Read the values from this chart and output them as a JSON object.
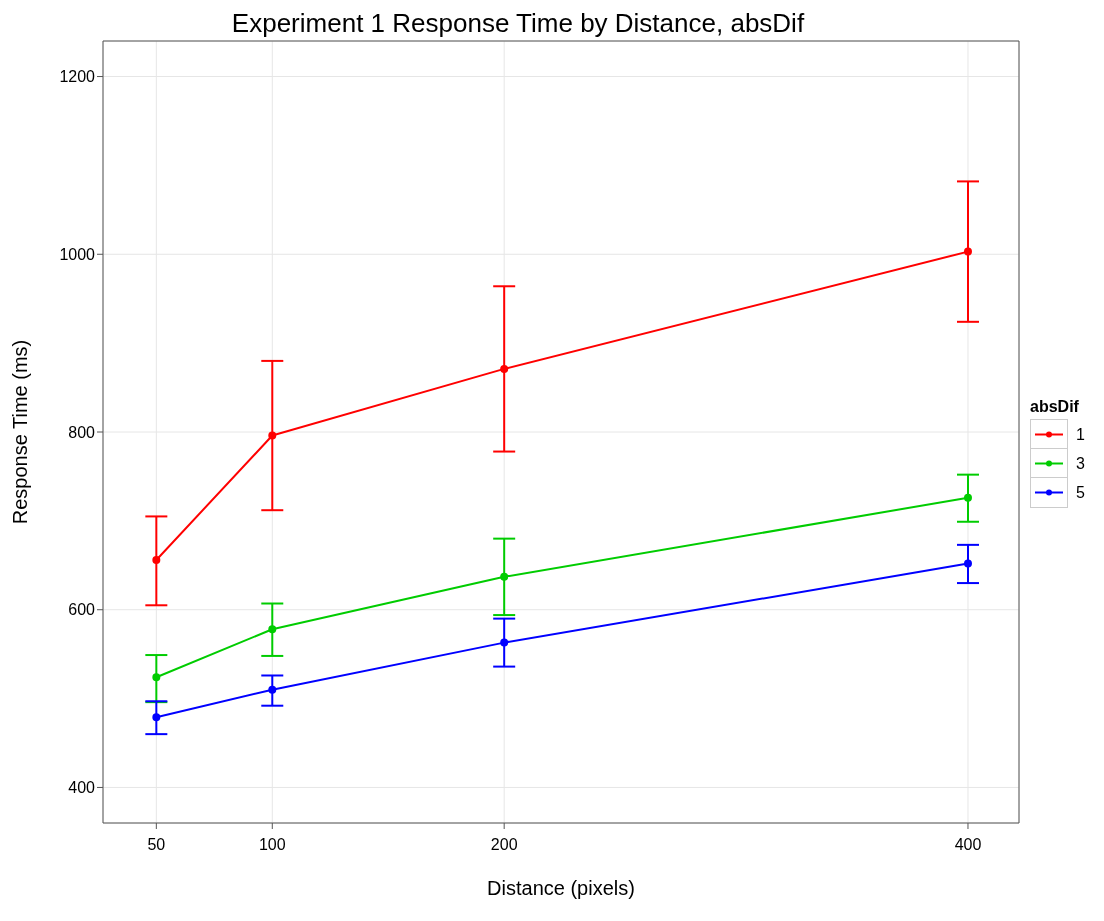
{
  "chart_data": {
    "type": "line",
    "title": "Experiment 1 Response Time by Distance, absDif",
    "xlabel": "Distance (pixels)",
    "ylabel": "Response Time (ms)",
    "legend_title": "absDif",
    "x": [
      50,
      100,
      200,
      400
    ],
    "series": [
      {
        "name": "1",
        "color": "#ff0000",
        "values": [
          656,
          796,
          871,
          1003
        ],
        "errors": [
          [
            605,
            705
          ],
          [
            712,
            880
          ],
          [
            778,
            964
          ],
          [
            924,
            1082
          ]
        ]
      },
      {
        "name": "3",
        "color": "#00cc00",
        "values": [
          524,
          578,
          637,
          726
        ],
        "errors": [
          [
            496,
            549
          ],
          [
            548,
            607
          ],
          [
            594,
            680
          ],
          [
            699,
            752
          ]
        ]
      },
      {
        "name": "5",
        "color": "#0000ff",
        "values": [
          479,
          510,
          563,
          652
        ],
        "errors": [
          [
            460,
            497
          ],
          [
            492,
            526
          ],
          [
            536,
            590
          ],
          [
            630,
            673
          ]
        ]
      }
    ],
    "xlim": [
      27,
      422
    ],
    "xticks": [
      50,
      100,
      200,
      400
    ],
    "ylim": [
      360,
      1240
    ],
    "yticks": [
      400,
      600,
      800,
      1000,
      1200
    ],
    "grid": true,
    "legend": "right",
    "marker": "circle",
    "line_style": "solid"
  }
}
